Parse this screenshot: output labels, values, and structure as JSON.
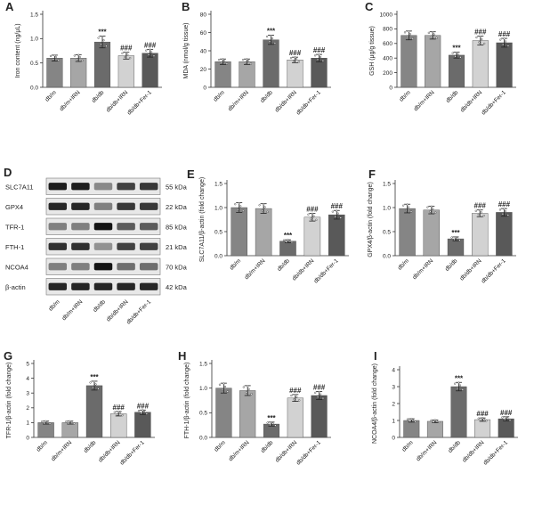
{
  "colors": [
    "#858585",
    "#a6a6a6",
    "#6b6b6b",
    "#d2d2d2",
    "#595959"
  ],
  "groups": [
    "db/m",
    "db/m+IRN",
    "db/db",
    "db/db+IRN",
    "db/db+Fer-1"
  ],
  "western_blot": {
    "label": "D",
    "proteins": [
      {
        "name": "SLC7A11",
        "kda": "55 kDa"
      },
      {
        "name": "GPX4",
        "kda": "22 kDa"
      },
      {
        "name": "TFR-1",
        "kda": "85 kDa"
      },
      {
        "name": "FTH-1",
        "kda": "21 kDa"
      },
      {
        "name": "NCOA4",
        "kda": "70 kDa"
      },
      {
        "name": "β-actin",
        "kda": "42 kDa"
      }
    ],
    "lanes": [
      "db/m",
      "db/m+IRN",
      "db/db",
      "db/db+IRN",
      "db/db+Fer-1"
    ],
    "band_intensity": [
      [
        0.95,
        0.95,
        0.35,
        0.75,
        0.8
      ],
      [
        0.9,
        0.9,
        0.4,
        0.8,
        0.8
      ],
      [
        0.4,
        0.4,
        1.0,
        0.6,
        0.6
      ],
      [
        0.85,
        0.85,
        0.3,
        0.75,
        0.75
      ],
      [
        0.4,
        0.4,
        1.0,
        0.5,
        0.5
      ],
      [
        0.9,
        0.9,
        0.9,
        0.9,
        0.9
      ]
    ]
  },
  "chart_data": [
    {
      "id": "A",
      "type": "bar",
      "label": "A",
      "ylabel": "Iron content (ng/μL)",
      "ylim": [
        0,
        1.5
      ],
      "yticks": [
        "0.0",
        "0.5",
        "1.0",
        "1.5"
      ],
      "values": [
        0.6,
        0.6,
        0.93,
        0.65,
        0.7
      ],
      "errors": [
        0.06,
        0.07,
        0.12,
        0.07,
        0.08
      ],
      "annotations": [
        "",
        "",
        "***",
        "###",
        "###"
      ],
      "categories": [
        "db/m",
        "db/m+IRN",
        "db/db",
        "db/db+IRN",
        "db/db+Fer-1"
      ]
    },
    {
      "id": "B",
      "type": "bar",
      "label": "B",
      "ylabel": "MDA (nmol/g tissue)",
      "ylim": [
        0,
        80
      ],
      "yticks": [
        "0",
        "20",
        "40",
        "60",
        "80"
      ],
      "values": [
        28,
        28,
        52,
        30,
        32
      ],
      "errors": [
        3,
        3,
        5,
        3,
        4
      ],
      "annotations": [
        "",
        "",
        "***",
        "###",
        "###"
      ],
      "categories": [
        "db/m",
        "db/m+IRN",
        "db/db",
        "db/db+IRN",
        "db/db+Fer-1"
      ]
    },
    {
      "id": "C",
      "type": "bar",
      "label": "C",
      "ylabel": "GSH (μg/g tissue)",
      "ylim": [
        0,
        1000
      ],
      "yticks": [
        "0",
        "200",
        "400",
        "600",
        "800",
        "1000"
      ],
      "values": [
        710,
        710,
        440,
        640,
        610
      ],
      "errors": [
        60,
        50,
        40,
        60,
        60
      ],
      "annotations": [
        "",
        "",
        "***",
        "###",
        "###"
      ],
      "categories": [
        "db/m",
        "db/m+IRN",
        "db/db",
        "db/db+IRN",
        "db/db+Fer-1"
      ]
    },
    {
      "id": "E",
      "type": "bar",
      "label": "E",
      "ylabel": "SLC7A11/β-actin (fold change)",
      "ylim": [
        0,
        1.5
      ],
      "yticks": [
        "0.0",
        "0.5",
        "1.0",
        "1.5"
      ],
      "values": [
        1.0,
        0.98,
        0.3,
        0.8,
        0.85
      ],
      "errors": [
        0.1,
        0.1,
        0.03,
        0.08,
        0.09
      ],
      "annotations": [
        "",
        "",
        "***",
        "###",
        "###"
      ],
      "categories": [
        "db/m",
        "db/m+IRN",
        "db/db",
        "db/db+IRN",
        "db/db+Fer-1"
      ]
    },
    {
      "id": "F",
      "type": "bar",
      "label": "F",
      "ylabel": "GPX4/β-actin (fold change)",
      "ylim": [
        0,
        1.5
      ],
      "yticks": [
        "0.0",
        "0.5",
        "1.0",
        "1.5"
      ],
      "values": [
        0.98,
        0.95,
        0.35,
        0.88,
        0.9
      ],
      "errors": [
        0.09,
        0.08,
        0.04,
        0.07,
        0.08
      ],
      "annotations": [
        "",
        "",
        "***",
        "###",
        "###"
      ],
      "categories": [
        "db/m",
        "db/m+IRN",
        "db/db",
        "db/db+IRN",
        "db/db+Fer-1"
      ]
    },
    {
      "id": "G",
      "type": "bar",
      "label": "G",
      "ylabel": "TFR-1/β-actin (fold change)",
      "ylim": [
        0,
        5
      ],
      "yticks": [
        "0",
        "1",
        "2",
        "3",
        "4",
        "5"
      ],
      "values": [
        1.0,
        1.0,
        3.5,
        1.6,
        1.7
      ],
      "errors": [
        0.1,
        0.1,
        0.3,
        0.15,
        0.15
      ],
      "annotations": [
        "",
        "",
        "***",
        "###",
        "###"
      ],
      "categories": [
        "db/m",
        "db/m+IRN",
        "db/db",
        "db/db+IRN",
        "db/db+Fer-1"
      ]
    },
    {
      "id": "H",
      "type": "bar",
      "label": "H",
      "ylabel": "FTH-1/β-actin (fold change)",
      "ylim": [
        0,
        1.5
      ],
      "yticks": [
        "0.0",
        "0.5",
        "1.0",
        "1.5"
      ],
      "values": [
        1.0,
        0.95,
        0.27,
        0.8,
        0.85
      ],
      "errors": [
        0.1,
        0.1,
        0.04,
        0.07,
        0.08
      ],
      "annotations": [
        "",
        "",
        "***",
        "###",
        "###"
      ],
      "categories": [
        "db/m",
        "db/m+IRN",
        "db/db",
        "db/db+IRN",
        "db/db+Fer-1"
      ]
    },
    {
      "id": "I",
      "type": "bar",
      "label": "I",
      "ylabel": "NCOA4/β-actin (fold change)",
      "ylim": [
        0,
        4
      ],
      "yticks": [
        "0",
        "1",
        "2",
        "3",
        "4"
      ],
      "values": [
        1.0,
        0.95,
        3.0,
        1.05,
        1.1
      ],
      "errors": [
        0.1,
        0.08,
        0.25,
        0.1,
        0.12
      ],
      "annotations": [
        "",
        "",
        "***",
        "###",
        "###"
      ],
      "categories": [
        "db/m",
        "db/m+IRN",
        "db/db",
        "db/db+IRN",
        "db/db+Fer-1"
      ]
    }
  ]
}
